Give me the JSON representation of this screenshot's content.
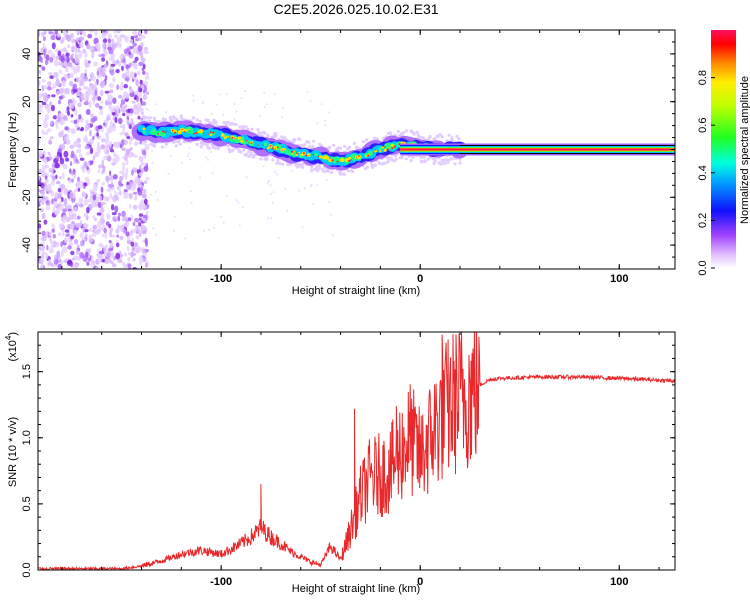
{
  "chart_data": [
    {
      "type": "heatmap",
      "title": "C2E5.2026.025.10.02.E31",
      "xlabel": "Height of straight line (km)",
      "ylabel": "Frequency (Hz)",
      "xlim": [
        -192,
        128
      ],
      "ylim": [
        -50,
        50
      ],
      "x_ticks": [
        -100,
        0,
        100
      ],
      "x_tick_labels": [
        "-100",
        "0",
        "100"
      ],
      "y_ticks": [
        -40,
        -20,
        0,
        20,
        40
      ],
      "y_tick_labels": [
        "-40",
        "-20",
        "0",
        "20",
        "40"
      ],
      "noise_region_x": [
        -192,
        -140
      ],
      "signal_track": {
        "x": [
          -140,
          -130,
          -120,
          -110,
          -100,
          -90,
          -80,
          -70,
          -60,
          -50,
          -40,
          -30,
          -20,
          -10,
          0,
          10,
          20,
          128
        ],
        "freq": [
          8,
          7,
          8,
          7,
          6,
          4,
          2,
          0,
          -2,
          -3,
          -5,
          -3,
          0,
          2,
          1,
          0,
          0,
          0
        ]
      },
      "colorbar": {
        "label": "Normalized spectral amplitude",
        "range": [
          0.0,
          1.0
        ],
        "ticks": [
          0.0,
          0.2,
          0.4,
          0.6,
          0.8
        ],
        "tick_labels": [
          "0.0",
          "0.2",
          "0.4",
          "0.6",
          "0.8"
        ]
      }
    },
    {
      "type": "line",
      "xlabel": "Height of straight line (km)",
      "ylabel": "SNR (10 * v/v)",
      "y_scale_label": "(x10",
      "y_scale_exp": "4",
      "y_scale_close": ")",
      "xlim": [
        -192,
        128
      ],
      "ylim": [
        0,
        1.8
      ],
      "x_ticks": [
        -100,
        0,
        100
      ],
      "x_tick_labels": [
        "-100",
        "0",
        "100"
      ],
      "y_ticks": [
        0.0,
        0.5,
        1.0,
        1.5
      ],
      "y_tick_labels": [
        "0.0",
        "0.5",
        "1.0",
        "1.5"
      ],
      "series": [
        {
          "name": "SNR",
          "color": "#e8282a",
          "x": [
            -192,
            -150,
            -140,
            -130,
            -120,
            -110,
            -100,
            -90,
            -85,
            -80,
            -75,
            -70,
            -65,
            -60,
            -55,
            -50,
            -45,
            -40,
            -35,
            -30,
            -25,
            -20,
            -15,
            -10,
            -5,
            0,
            5,
            10,
            15,
            20,
            25,
            30,
            35,
            40,
            60,
            80,
            100,
            128
          ],
          "values": [
            0.01,
            0.01,
            0.03,
            0.07,
            0.12,
            0.15,
            0.12,
            0.2,
            0.25,
            0.32,
            0.25,
            0.2,
            0.14,
            0.1,
            0.06,
            0.04,
            0.18,
            0.08,
            0.3,
            0.55,
            0.7,
            0.72,
            0.75,
            0.9,
            1.0,
            0.85,
            1.0,
            1.15,
            1.25,
            1.3,
            1.35,
            1.4,
            1.44,
            1.45,
            1.46,
            1.46,
            1.45,
            1.43
          ],
          "spikes": [
            {
              "x": -80,
              "value": 0.65
            },
            {
              "x": -33,
              "value": 1.22
            },
            {
              "x": -12,
              "value": 1.24
            },
            {
              "x": 11,
              "value": 1.78
            },
            {
              "x": -2,
              "value": 1.18
            },
            {
              "x": 3,
              "value": 1.1
            }
          ]
        }
      ]
    }
  ]
}
